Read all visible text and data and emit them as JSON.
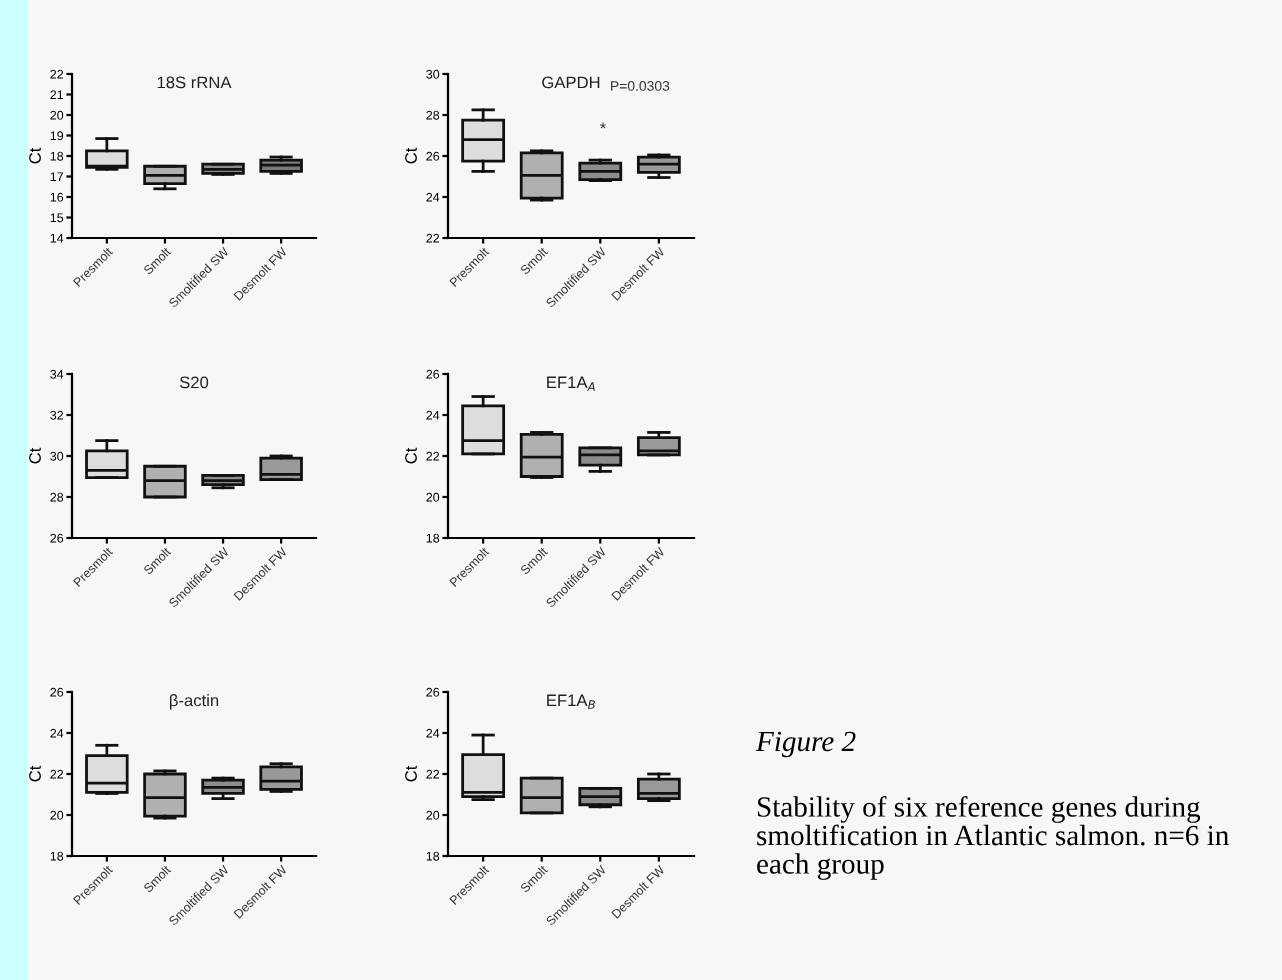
{
  "chart_data": [
    {
      "type": "box",
      "title": "18S rRNA",
      "ylabel": "Ct",
      "categories": [
        "Presmolt",
        "Smolt",
        "Smoltified SW",
        "Desmolt FW"
      ],
      "colors": [
        "#dddddd",
        "#b0b0b0",
        "#8c8c8c",
        "#7a7a7a"
      ],
      "ylim": [
        14,
        22
      ],
      "yticks": [
        14,
        15,
        16,
        17,
        18,
        19,
        20,
        21,
        22
      ],
      "grid": false,
      "boxes": [
        {
          "low": 17.35,
          "q1": 17.45,
          "median": 17.5,
          "q3": 18.25,
          "high": 18.85
        },
        {
          "low": 16.4,
          "q1": 16.65,
          "median": 17.05,
          "q3": 17.5,
          "high": 17.5
        },
        {
          "low": 17.1,
          "q1": 17.15,
          "median": 17.35,
          "q3": 17.6,
          "high": 17.6
        },
        {
          "low": 17.15,
          "q1": 17.25,
          "median": 17.55,
          "q3": 17.8,
          "high": 17.95
        }
      ]
    },
    {
      "type": "box",
      "title": "GAPDH",
      "ylabel": "Ct",
      "categories": [
        "Presmolt",
        "Smolt",
        "Smoltified SW",
        "Desmolt FW"
      ],
      "colors": [
        "#dddddd",
        "#b0b0b0",
        "#8c8c8c",
        "#999999"
      ],
      "ylim": [
        22,
        30
      ],
      "yticks": [
        22,
        24,
        26,
        28,
        30
      ],
      "grid": false,
      "annotations": [
        "P=0.0303",
        "*"
      ],
      "boxes": [
        {
          "low": 25.25,
          "q1": 25.75,
          "median": 26.8,
          "q3": 27.75,
          "high": 28.25
        },
        {
          "low": 23.85,
          "q1": 23.95,
          "median": 25.05,
          "q3": 26.15,
          "high": 26.25
        },
        {
          "low": 24.8,
          "q1": 24.85,
          "median": 25.25,
          "q3": 25.65,
          "high": 25.8
        },
        {
          "low": 24.95,
          "q1": 25.2,
          "median": 25.6,
          "q3": 25.95,
          "high": 26.05
        }
      ]
    },
    {
      "type": "box",
      "title": "S20",
      "ylabel": "Ct",
      "categories": [
        "Presmolt",
        "Smolt",
        "Smoltified SW",
        "Desmolt FW"
      ],
      "colors": [
        "#dddddd",
        "#b0b0b0",
        "#8c8c8c",
        "#999999"
      ],
      "ylim": [
        26,
        34
      ],
      "yticks": [
        26,
        28,
        30,
        32,
        34
      ],
      "grid": false,
      "boxes": [
        {
          "low": 28.95,
          "q1": 28.95,
          "median": 29.3,
          "q3": 30.25,
          "high": 30.75
        },
        {
          "low": 28.0,
          "q1": 28.0,
          "median": 28.8,
          "q3": 29.5,
          "high": 29.5
        },
        {
          "low": 28.45,
          "q1": 28.6,
          "median": 28.8,
          "q3": 29.05,
          "high": 29.05
        },
        {
          "low": 28.85,
          "q1": 28.85,
          "median": 29.1,
          "q3": 29.9,
          "high": 30.0
        }
      ]
    },
    {
      "type": "box",
      "title": "EF1A$_{A}$",
      "ylabel": "Ct",
      "categories": [
        "Presmolt",
        "Smolt",
        "Smoltified SW",
        "Desmolt FW"
      ],
      "colors": [
        "#dddddd",
        "#b0b0b0",
        "#8c8c8c",
        "#999999"
      ],
      "ylim": [
        18,
        26
      ],
      "yticks": [
        18,
        20,
        22,
        24,
        26
      ],
      "grid": false,
      "boxes": [
        {
          "low": 22.1,
          "q1": 22.1,
          "median": 22.75,
          "q3": 24.45,
          "high": 24.9
        },
        {
          "low": 20.95,
          "q1": 21.0,
          "median": 21.95,
          "q3": 23.05,
          "high": 23.15
        },
        {
          "low": 21.25,
          "q1": 21.55,
          "median": 22.05,
          "q3": 22.4,
          "high": 22.4
        },
        {
          "low": 22.05,
          "q1": 22.05,
          "median": 22.25,
          "q3": 22.9,
          "high": 23.15
        }
      ]
    },
    {
      "type": "box",
      "title": "β-actin",
      "ylabel": "Ct",
      "categories": [
        "Presmolt",
        "Smolt",
        "Smoltified SW",
        "Desmolt FW"
      ],
      "colors": [
        "#dddddd",
        "#b0b0b0",
        "#8c8c8c",
        "#999999"
      ],
      "ylim": [
        18,
        26
      ],
      "yticks": [
        18,
        20,
        22,
        24,
        26
      ],
      "grid": false,
      "boxes": [
        {
          "low": 21.05,
          "q1": 21.1,
          "median": 21.55,
          "q3": 22.9,
          "high": 23.4
        },
        {
          "low": 19.85,
          "q1": 19.95,
          "median": 20.85,
          "q3": 22.0,
          "high": 22.15
        },
        {
          "low": 20.8,
          "q1": 21.05,
          "median": 21.35,
          "q3": 21.7,
          "high": 21.8
        },
        {
          "low": 21.15,
          "q1": 21.25,
          "median": 21.65,
          "q3": 22.35,
          "high": 22.5
        }
      ]
    },
    {
      "type": "box",
      "title": "EF1A$_{B}$",
      "ylabel": "Ct",
      "categories": [
        "Presmolt",
        "Smolt",
        "Smoltified SW",
        "Desmolt FW"
      ],
      "colors": [
        "#dddddd",
        "#b0b0b0",
        "#8c8c8c",
        "#999999"
      ],
      "ylim": [
        18,
        26
      ],
      "yticks": [
        18,
        20,
        22,
        24,
        26
      ],
      "grid": false,
      "boxes": [
        {
          "low": 20.75,
          "q1": 20.9,
          "median": 21.1,
          "q3": 22.95,
          "high": 23.9
        },
        {
          "low": 20.1,
          "q1": 20.1,
          "median": 20.85,
          "q3": 21.8,
          "high": 21.8
        },
        {
          "low": 20.4,
          "q1": 20.5,
          "median": 20.9,
          "q3": 21.3,
          "high": 21.3
        },
        {
          "low": 20.7,
          "q1": 20.8,
          "median": 21.05,
          "q3": 21.75,
          "high": 22.0
        }
      ]
    },
    {
      "type": "other",
      "title": "Figure 2",
      "annotations": [
        "Stability of six reference genes during smoltification in Atlantic salmon. n=6 in each group"
      ]
    }
  ]
}
